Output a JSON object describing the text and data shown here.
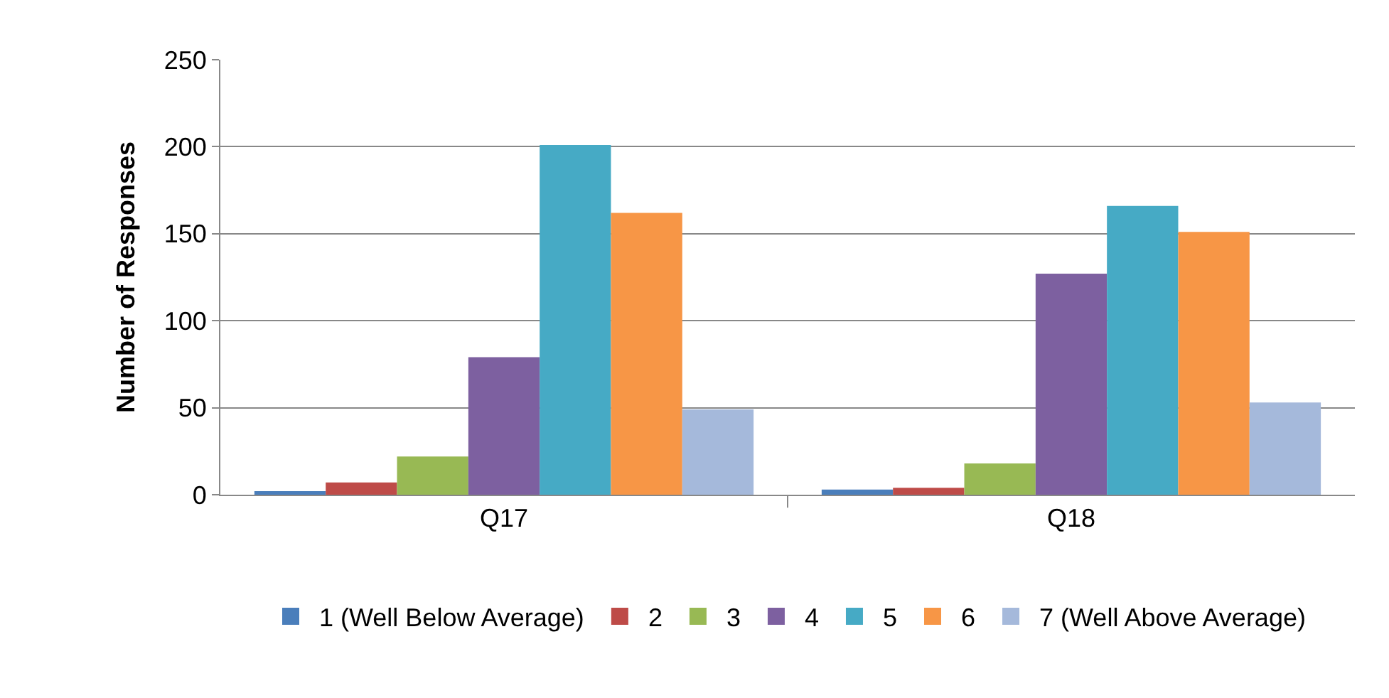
{
  "chart_data": {
    "type": "bar",
    "ylabel": "Number of Responses",
    "categories": [
      "Q17",
      "Q18"
    ],
    "series": [
      {
        "name": "1 (Well Below Average)",
        "color": "#4a7ebb",
        "values": [
          2,
          3
        ]
      },
      {
        "name": "2",
        "color": "#be4b48",
        "values": [
          7,
          4
        ]
      },
      {
        "name": "3",
        "color": "#98b954",
        "values": [
          22,
          18
        ]
      },
      {
        "name": "4",
        "color": "#7d60a0",
        "values": [
          79,
          127
        ]
      },
      {
        "name": "5",
        "color": "#46aac5",
        "values": [
          201,
          166
        ]
      },
      {
        "name": "6",
        "color": "#f79646",
        "values": [
          162,
          151
        ]
      },
      {
        "name": "7 (Well Above Average)",
        "color": "#a5b9db",
        "values": [
          49,
          53
        ]
      }
    ],
    "ylim": [
      0,
      250
    ],
    "yticks": [
      0,
      50,
      100,
      150,
      200,
      250
    ],
    "grid": "y",
    "legend": "bottom"
  }
}
